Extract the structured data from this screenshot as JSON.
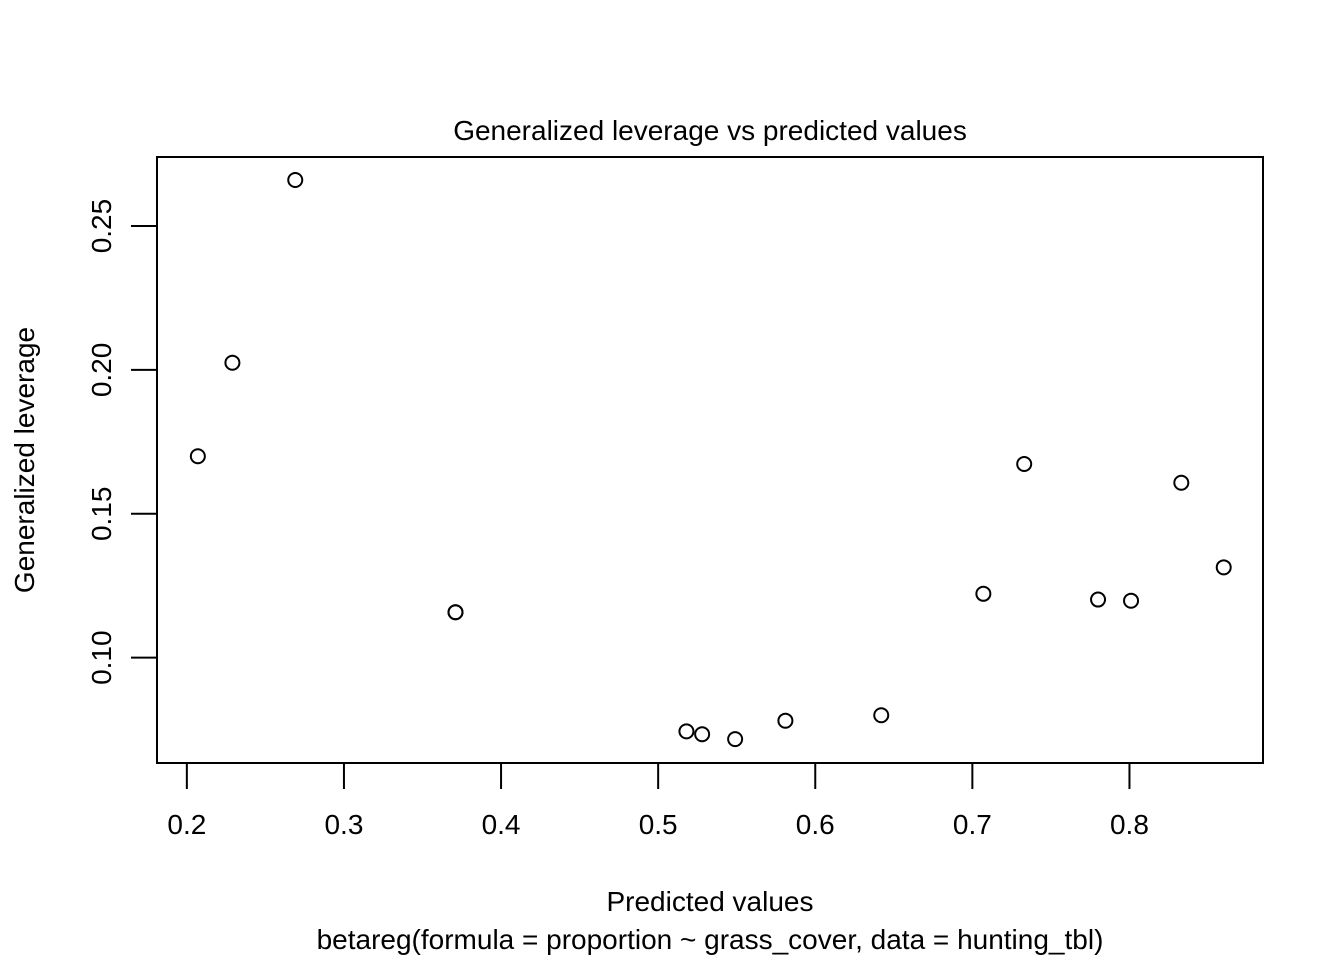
{
  "chart_data": {
    "type": "scatter",
    "title": "Generalized leverage vs predicted values",
    "xlabel": "Predicted values",
    "subtitle": "betareg(formula = proportion ~ grass_cover, data = hunting_tbl)",
    "ylabel": "Generalized leverage",
    "xlim": [
      0.181,
      0.885
    ],
    "ylim": [
      0.0634,
      0.274
    ],
    "x_ticks": [
      0.2,
      0.3,
      0.4,
      0.5,
      0.6,
      0.7,
      0.8
    ],
    "x_tick_labels": [
      "0.2",
      "0.3",
      "0.4",
      "0.5",
      "0.6",
      "0.7",
      "0.8"
    ],
    "y_ticks": [
      0.1,
      0.15,
      0.2,
      0.25
    ],
    "y_tick_labels": [
      "0.10",
      "0.15",
      "0.20",
      "0.25"
    ],
    "grid": false,
    "legend": "none",
    "marker": "open-circle",
    "points": [
      {
        "x": 0.207,
        "y": 0.17
      },
      {
        "x": 0.229,
        "y": 0.2025
      },
      {
        "x": 0.269,
        "y": 0.266
      },
      {
        "x": 0.371,
        "y": 0.1158
      },
      {
        "x": 0.371,
        "y": 0.1158
      },
      {
        "x": 0.518,
        "y": 0.0744
      },
      {
        "x": 0.528,
        "y": 0.0734
      },
      {
        "x": 0.549,
        "y": 0.0717
      },
      {
        "x": 0.581,
        "y": 0.0781
      },
      {
        "x": 0.642,
        "y": 0.08
      },
      {
        "x": 0.707,
        "y": 0.1222
      },
      {
        "x": 0.733,
        "y": 0.1673
      },
      {
        "x": 0.78,
        "y": 0.1202
      },
      {
        "x": 0.801,
        "y": 0.1198
      },
      {
        "x": 0.833,
        "y": 0.1608
      },
      {
        "x": 0.86,
        "y": 0.1314
      }
    ],
    "colors": {
      "marker": "#000000",
      "axis": "#000000",
      "background": "#ffffff"
    }
  }
}
